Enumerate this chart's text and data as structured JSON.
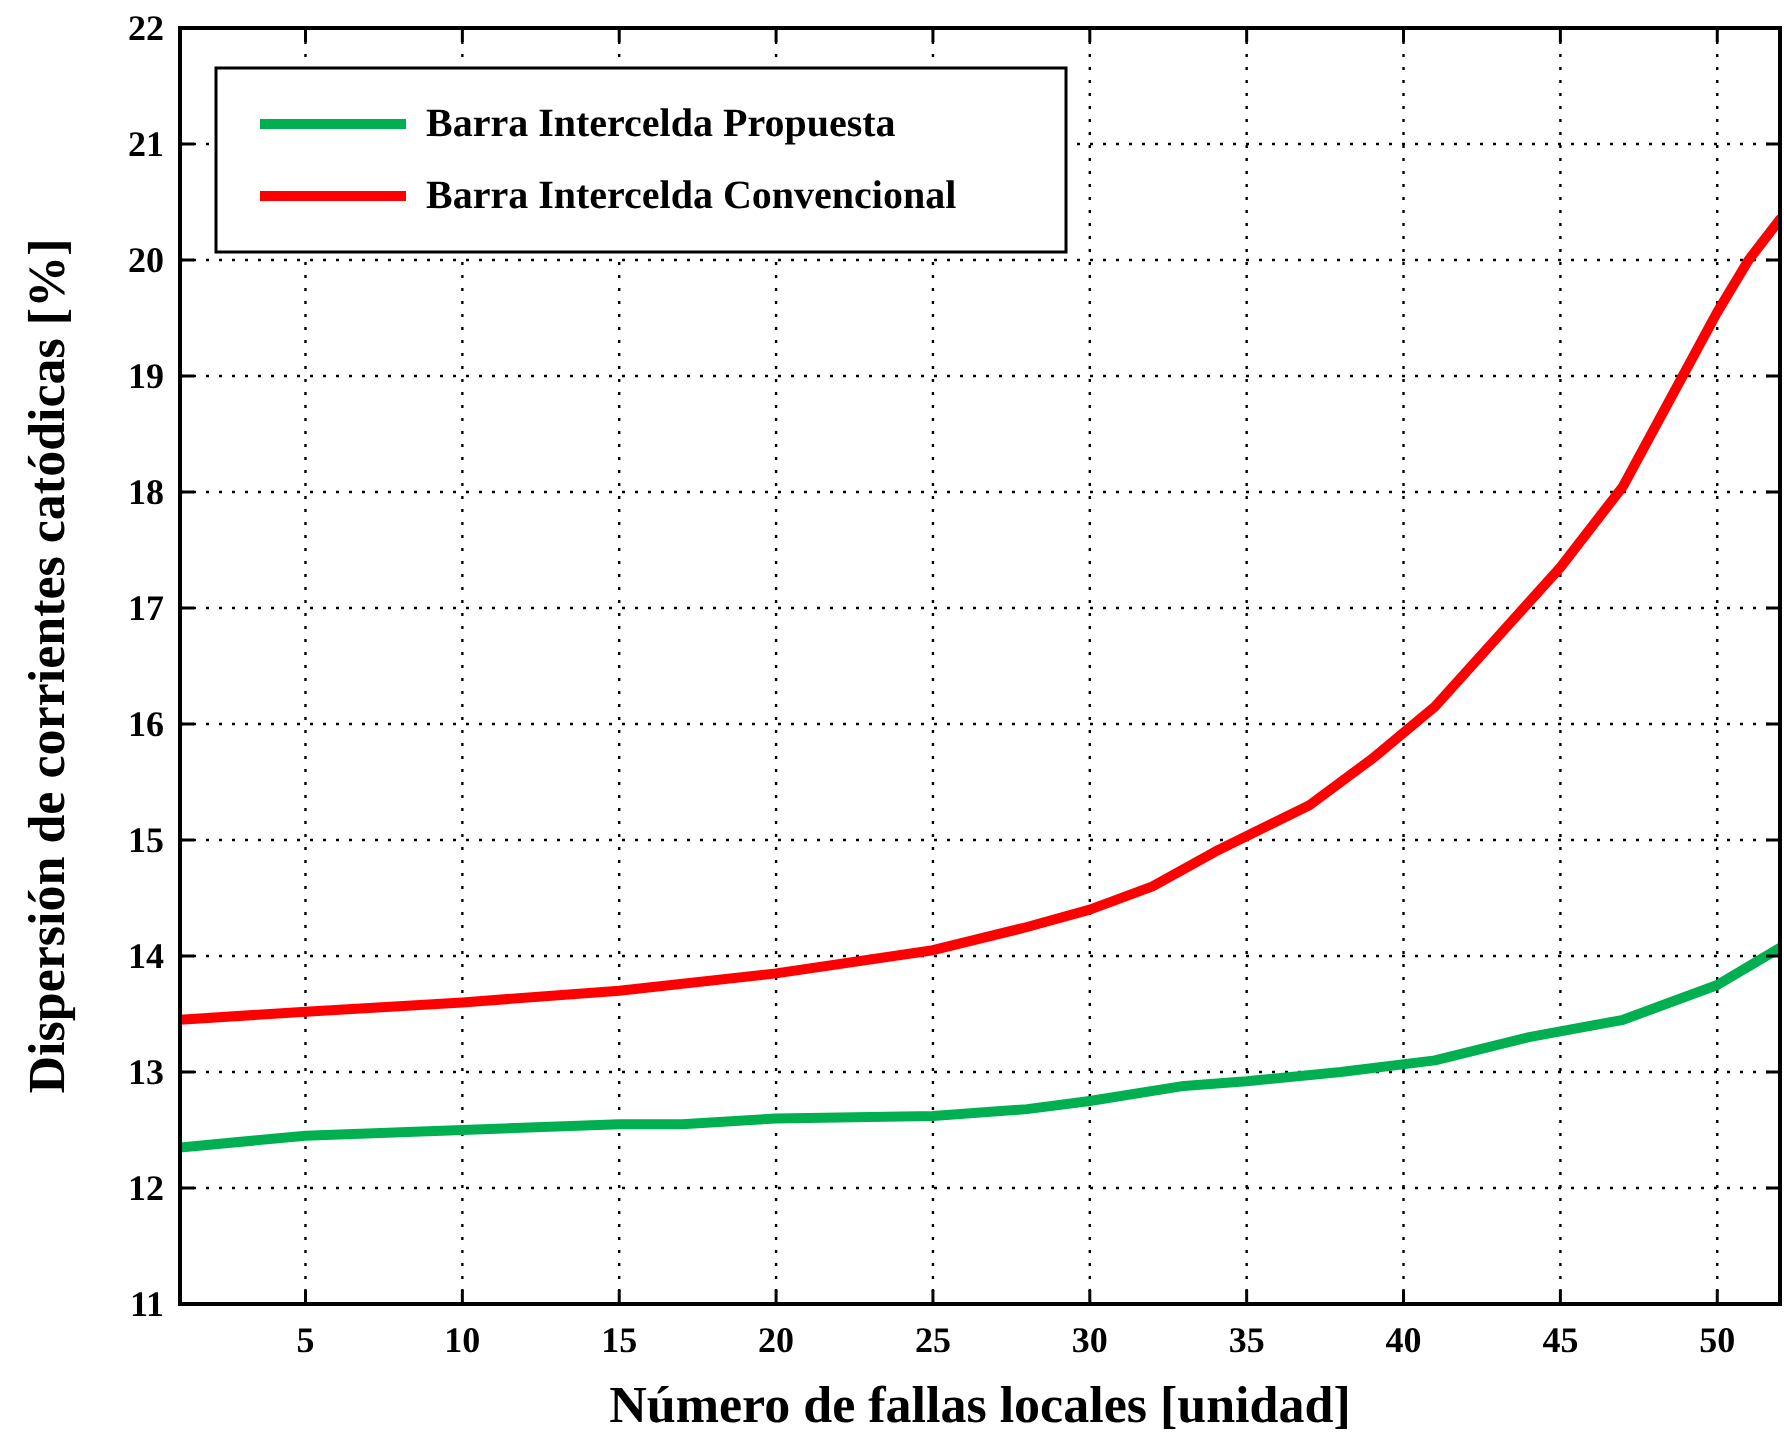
{
  "chart_data": {
    "type": "line",
    "xlabel": "Número de fallas locales [unidad]",
    "ylabel": "Dispersión de corrientes catódicas [%]",
    "xlim": [
      1,
      52
    ],
    "xticks": [
      5,
      10,
      15,
      20,
      25,
      30,
      35,
      40,
      45,
      50
    ],
    "ylim": [
      11,
      22
    ],
    "yticks": [
      11,
      12,
      13,
      14,
      15,
      16,
      17,
      18,
      19,
      20,
      21,
      22
    ],
    "grid": true,
    "legend": "top left",
    "line_style": "solid",
    "series": [
      {
        "name": "Barra Intercelda Propuesta",
        "color": "#00b050",
        "x": [
          1,
          5,
          10,
          15,
          17,
          20,
          25,
          28,
          30,
          33,
          35,
          38,
          41,
          44,
          47,
          50,
          52
        ],
        "values": [
          12.35,
          12.45,
          12.5,
          12.55,
          12.55,
          12.6,
          12.62,
          12.68,
          12.75,
          12.88,
          12.92,
          13.0,
          13.1,
          13.3,
          13.45,
          13.75,
          14.07
        ]
      },
      {
        "name": "Barra Intercelda Convencional",
        "color": "#ff0000",
        "x": [
          1,
          5,
          10,
          15,
          20,
          25,
          28,
          30,
          32,
          34,
          37,
          39,
          41,
          43,
          45,
          47,
          49,
          50,
          51,
          52
        ],
        "values": [
          13.45,
          13.52,
          13.6,
          13.7,
          13.85,
          14.05,
          14.25,
          14.4,
          14.6,
          14.9,
          15.3,
          15.7,
          16.15,
          16.75,
          17.35,
          18.05,
          19.05,
          19.55,
          20.0,
          20.35
        ]
      }
    ]
  }
}
